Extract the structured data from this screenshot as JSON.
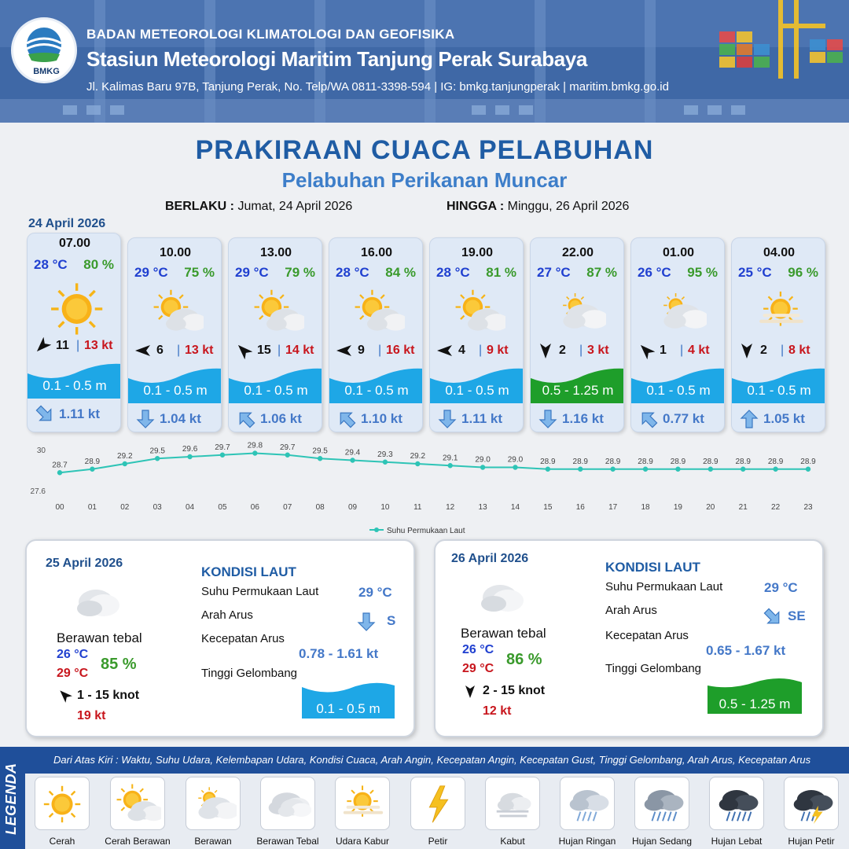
{
  "header": {
    "logo_text": "BMKG",
    "org": "BADAN METEOROLOGI KLIMATOLOGI DAN GEOFISIKA",
    "station": "Stasiun Meteorologi Maritim Tanjung Perak Surabaya",
    "address": "Jl. Kalimas Baru 97B, Tanjung Perak, No. Telp/WA 0811-3398-594 | IG: bmkg.tanjungperak | maritim.bmkg.go.id"
  },
  "title": "PRAKIRAAN CUACA PELABUHAN",
  "subtitle": "Pelabuhan Perikanan Muncar",
  "validity": {
    "from_label": "BERLAKU :",
    "from_value": "Jumat, 24 April 2026",
    "to_label": "HINGGA :",
    "to_value": "Minggu, 26 April 2026"
  },
  "day1_date": "24 April 2026",
  "hourly": [
    {
      "time": "07.00",
      "temp": "28 °C",
      "hum": "80 %",
      "icon": "sun-icon",
      "wind_dir": 225,
      "wind": "11",
      "gust": "13 kt",
      "wave": "0.1 - 0.5 m",
      "wave_color": "#1ea7e6",
      "cur_dir": 135,
      "cur": "1.11 kt"
    },
    {
      "time": "10.00",
      "temp": "29 °C",
      "hum": "75 %",
      "icon": "sunny-cloud-icon",
      "wind_dir": 270,
      "wind": "6",
      "gust": "13 kt",
      "wave": "0.1 - 0.5 m",
      "wave_color": "#1ea7e6",
      "cur_dir": 180,
      "cur": "1.04 kt"
    },
    {
      "time": "13.00",
      "temp": "29 °C",
      "hum": "79 %",
      "icon": "sunny-cloud-icon",
      "wind_dir": 315,
      "wind": "15",
      "gust": "14 kt",
      "wave": "0.1 - 0.5 m",
      "wave_color": "#1ea7e6",
      "cur_dir": 315,
      "cur": "1.06 kt"
    },
    {
      "time": "16.00",
      "temp": "28 °C",
      "hum": "84 %",
      "icon": "sunny-cloud-icon",
      "wind_dir": 270,
      "wind": "9",
      "gust": "16 kt",
      "wave": "0.1 - 0.5 m",
      "wave_color": "#1ea7e6",
      "cur_dir": 315,
      "cur": "1.10 kt"
    },
    {
      "time": "19.00",
      "temp": "28 °C",
      "hum": "81 %",
      "icon": "sunny-cloud-icon",
      "wind_dir": 270,
      "wind": "4",
      "gust": "9 kt",
      "wave": "0.1 - 0.5 m",
      "wave_color": "#1ea7e6",
      "cur_dir": 180,
      "cur": "1.11 kt"
    },
    {
      "time": "22.00",
      "temp": "27 °C",
      "hum": "87 %",
      "icon": "cloudy-icon",
      "wind_dir": 180,
      "wind": "2",
      "gust": "3 kt",
      "wave": "0.5 - 1.25 m",
      "wave_color": "#1e9e2a",
      "cur_dir": 180,
      "cur": "1.16 kt"
    },
    {
      "time": "01.00",
      "temp": "26 °C",
      "hum": "95 %",
      "icon": "cloudy-icon",
      "wind_dir": 315,
      "wind": "1",
      "gust": "4 kt",
      "wave": "0.1 - 0.5 m",
      "wave_color": "#1ea7e6",
      "cur_dir": 315,
      "cur": "0.77 kt"
    },
    {
      "time": "04.00",
      "temp": "25 °C",
      "hum": "96 %",
      "icon": "hazy-sun-icon",
      "wind_dir": 180,
      "wind": "2",
      "gust": "8 kt",
      "wave": "0.1 - 0.5 m",
      "wave_color": "#1ea7e6",
      "cur_dir": 0,
      "cur": "1.05 kt"
    }
  ],
  "chart_data": {
    "type": "line",
    "categories": [
      "00",
      "01",
      "02",
      "03",
      "04",
      "05",
      "06",
      "07",
      "08",
      "09",
      "10",
      "11",
      "12",
      "13",
      "14",
      "15",
      "16",
      "17",
      "18",
      "19",
      "20",
      "21",
      "22",
      "23"
    ],
    "series": [
      {
        "name": "Suhu Permukaan Laut",
        "values": [
          28.7,
          28.9,
          29.2,
          29.5,
          29.6,
          29.7,
          29.8,
          29.7,
          29.5,
          29.4,
          29.3,
          29.2,
          29.1,
          29.0,
          29.0,
          28.9,
          28.9,
          28.9,
          28.9,
          28.9,
          28.9,
          28.9,
          28.9,
          28.9
        ]
      }
    ],
    "y_ticks": [
      "30",
      "27.6"
    ],
    "ylim": [
      27.6,
      30
    ],
    "color": "#2ec4b6",
    "legend": "bottom"
  },
  "days": [
    {
      "date": "25 April 2026",
      "condition": "Berawan tebal",
      "tmin": "26 °C",
      "tmax": "29 °C",
      "hum": "85 %",
      "wind": "1  - 15 knot",
      "wind_dir": 315,
      "gust": "19 kt",
      "sea_head": "KONDISI LAUT",
      "sst_label": "Suhu Permukaan Laut",
      "sst": "29 °C",
      "cur_dir_label": "Arah Arus",
      "cur_dir": "S",
      "cur_dir_deg": 180,
      "cur_spd_label": "Kecepatan Arus",
      "cur_spd": "0.78  - 1.61 kt",
      "wave_label": "Tinggi Gelombang",
      "wave": "0.1 - 0.5 m",
      "wave_color": "#1ea7e6"
    },
    {
      "date": "26 April 2026",
      "condition": "Berawan tebal",
      "tmin": "26 °C",
      "tmax": "29 °C",
      "hum": "86 %",
      "wind": "2  - 15 knot",
      "wind_dir": 180,
      "gust": "12 kt",
      "sea_head": "KONDISI LAUT",
      "sst_label": "Suhu Permukaan Laut",
      "sst": "29 °C",
      "cur_dir_label": "Arah Arus",
      "cur_dir": "SE",
      "cur_dir_deg": 135,
      "cur_spd_label": "Kecepatan Arus",
      "cur_spd": "0.65  - 1.67 kt",
      "wave_label": "Tinggi Gelombang",
      "wave": "0.5 - 1.25 m",
      "wave_color": "#1e9e2a"
    }
  ],
  "legend": {
    "side": "LEGENDA",
    "desc": "Dari Atas Kiri : Waktu, Suhu Udara, Kelembapan Udara, Kondisi Cuaca, Arah Angin, Kecepatan Angin, Kecepatan Gust, Tinggi Gelombang, Arah Arus, Kecepatan Arus",
    "items": [
      {
        "label": "Cerah",
        "icon": "sun-icon"
      },
      {
        "label": "Cerah Berawan",
        "icon": "sunny-cloud-icon"
      },
      {
        "label": "Berawan",
        "icon": "cloudy-icon"
      },
      {
        "label": "Berawan Tebal",
        "icon": "overcast-icon"
      },
      {
        "label": "Udara Kabur",
        "icon": "hazy-sun-icon"
      },
      {
        "label": "Petir",
        "icon": "lightning-icon"
      },
      {
        "label": "Kabut",
        "icon": "fog-icon"
      },
      {
        "label": "Hujan Ringan",
        "icon": "light-rain-icon"
      },
      {
        "label": "Hujan Sedang",
        "icon": "moderate-rain-icon"
      },
      {
        "label": "Hujan Lebat",
        "icon": "heavy-rain-icon"
      },
      {
        "label": "Hujan Petir",
        "icon": "thunderstorm-icon"
      }
    ]
  }
}
